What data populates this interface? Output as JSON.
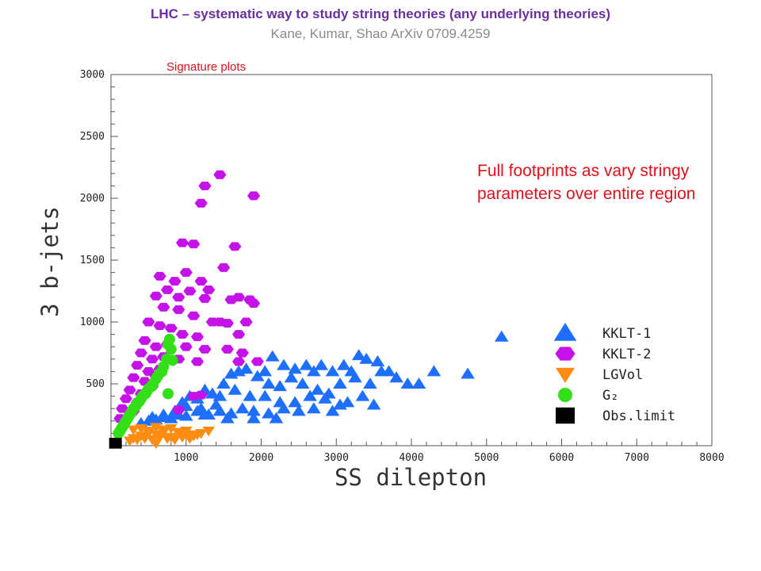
{
  "header": {
    "title": "LHC – systematic way to study string theories (any underlying theories)",
    "subtitle": "Kane, Kumar, Shao ArXiv 0709.4259",
    "section_label": "Signature plots",
    "annotation": "Full footprints as vary stringy parameters over entire region"
  },
  "colors": {
    "kklt1": "#1f6fff",
    "kklt2": "#c412e8",
    "lgvol": "#ff8c12",
    "g2": "#33e018",
    "obs": "#000000"
  },
  "chart_data": {
    "type": "scatter",
    "xlabel": "SS dilepton",
    "ylabel": "3 b-jets",
    "xlim": [
      0,
      8000
    ],
    "ylim": [
      0,
      3000
    ],
    "xticks": [
      1000,
      2000,
      3000,
      4000,
      5000,
      6000,
      7000,
      8000
    ],
    "yticks": [
      500,
      1000,
      1500,
      2000,
      2500,
      3000
    ],
    "legend_position": "right",
    "series": [
      {
        "name": "KKLT-1",
        "marker": "triangle",
        "color": "#1f6fff",
        "x": [
          5200,
          4750,
          4300,
          4100,
          3950,
          3800,
          3700,
          3550,
          3400,
          3300,
          3200,
          3100,
          2950,
          2800,
          2700,
          2600,
          2450,
          2300,
          2150,
          2050,
          3600,
          3450,
          3250,
          3050,
          2900,
          2750,
          2550,
          2400,
          2250,
          2100,
          1950,
          1800,
          1700,
          1600,
          1500,
          3350,
          3150,
          2850,
          2650,
          2450,
          2250,
          2050,
          1850,
          1650,
          1450,
          1350,
          1250,
          1150,
          1050,
          950,
          2950,
          2700,
          2500,
          2300,
          2100,
          1900,
          1750,
          1600,
          1450,
          1300,
          1150,
          1000,
          900,
          800,
          700,
          600,
          500,
          400,
          1400,
          1200,
          1000,
          850,
          700,
          550,
          3050,
          3500,
          2200,
          1900,
          1550,
          1250
        ],
        "y": [
          880,
          580,
          600,
          500,
          500,
          550,
          600,
          680,
          700,
          730,
          600,
          650,
          600,
          650,
          600,
          650,
          620,
          650,
          720,
          600,
          600,
          500,
          550,
          500,
          420,
          450,
          500,
          550,
          480,
          500,
          560,
          620,
          600,
          580,
          500,
          400,
          350,
          380,
          400,
          350,
          350,
          400,
          400,
          450,
          400,
          420,
          450,
          380,
          400,
          350,
          280,
          300,
          280,
          300,
          260,
          280,
          300,
          260,
          280,
          250,
          280,
          240,
          250,
          220,
          230,
          210,
          200,
          180,
          330,
          300,
          320,
          280,
          250,
          230,
          330,
          330,
          220,
          220,
          220,
          250
        ]
      },
      {
        "name": "KKLT-2",
        "marker": "hexagon",
        "color": "#c412e8",
        "x": [
          1450,
          1900,
          1250,
          1200,
          1650,
          950,
          1100,
          1700,
          1850,
          1500,
          650,
          850,
          1000,
          1200,
          1300,
          600,
          750,
          900,
          1050,
          1250,
          1600,
          1900,
          700,
          900,
          1100,
          1350,
          1550,
          1800,
          500,
          650,
          800,
          950,
          1150,
          1450,
          1700,
          450,
          600,
          750,
          1000,
          1250,
          1550,
          400,
          550,
          700,
          900,
          1150,
          350,
          500,
          650,
          300,
          450,
          600,
          250,
          400,
          550,
          200,
          350,
          150,
          300,
          120,
          1200,
          1100,
          900,
          1750,
          1700,
          1950
        ],
        "y": [
          2190,
          2020,
          2100,
          1960,
          1610,
          1640,
          1630,
          1200,
          1180,
          1440,
          1370,
          1330,
          1400,
          1330,
          1260,
          1210,
          1260,
          1200,
          1250,
          1190,
          1180,
          1150,
          1120,
          1100,
          1050,
          1000,
          990,
          1000,
          1000,
          970,
          950,
          900,
          880,
          1000,
          900,
          850,
          800,
          820,
          800,
          780,
          780,
          750,
          700,
          720,
          700,
          680,
          650,
          600,
          620,
          550,
          520,
          560,
          450,
          420,
          480,
          380,
          350,
          300,
          280,
          220,
          410,
          400,
          290,
          750,
          680,
          680
        ]
      },
      {
        "name": "LGVol",
        "marker": "triangle-down",
        "color": "#ff8c12",
        "x": [
          300,
          400,
          500,
          600,
          700,
          800,
          900,
          1000,
          1100,
          1200,
          1300,
          250,
          350,
          450,
          550,
          650,
          750,
          850,
          950,
          1050,
          1150,
          300,
          400,
          500,
          600,
          700,
          800,
          900,
          1000,
          600
        ],
        "y": [
          60,
          80,
          100,
          90,
          110,
          70,
          100,
          90,
          80,
          100,
          120,
          40,
          50,
          60,
          50,
          70,
          60,
          50,
          70,
          60,
          90,
          130,
          140,
          120,
          150,
          130,
          140,
          110,
          120,
          20
        ]
      },
      {
        "name": "G₂",
        "marker": "circle",
        "color": "#33e018",
        "x": [
          780,
          760,
          800,
          740,
          820,
          700,
          680,
          640,
          620,
          600,
          560,
          540,
          500,
          480,
          460,
          420,
          400,
          380,
          350,
          330,
          300,
          280,
          260,
          240,
          220,
          200,
          180,
          160,
          140,
          120,
          100,
          760
        ],
        "y": [
          860,
          820,
          780,
          700,
          690,
          640,
          600,
          580,
          560,
          540,
          500,
          480,
          460,
          440,
          420,
          400,
          380,
          360,
          340,
          320,
          300,
          280,
          260,
          240,
          220,
          200,
          180,
          160,
          140,
          120,
          100,
          420
        ]
      },
      {
        "name": "Obs.limit",
        "marker": "square",
        "color": "#000000",
        "x": [
          60
        ],
        "y": [
          20
        ]
      }
    ]
  }
}
